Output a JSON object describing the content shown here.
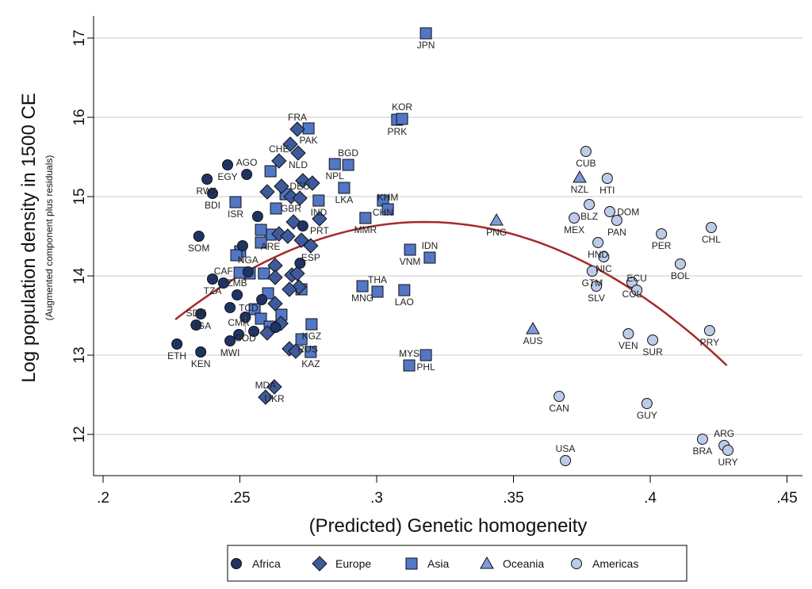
{
  "chart_data": {
    "type": "scatter",
    "xlabel": "(Predicted) Genetic homogeneity",
    "ylabel": "Log population density in 1500 CE",
    "ylabel_sub": "(Augmented component plus residuals)",
    "xlim": [
      0.2,
      0.45
    ],
    "ylim": [
      11.5,
      17.2
    ],
    "x_ticks": [
      ".2",
      ".25",
      ".3",
      ".35",
      ".4",
      ".45"
    ],
    "x_tick_values": [
      0.2,
      0.25,
      0.3,
      0.35,
      0.4,
      0.45
    ],
    "y_ticks": [
      "12",
      "13",
      "14",
      "15",
      "16",
      "17"
    ],
    "y_tick_values": [
      12,
      13,
      14,
      15,
      16,
      17
    ],
    "grid": "horizontal",
    "legend_position": "bottom",
    "legend": [
      {
        "name": "Africa",
        "marker": "circle",
        "color": "#1f3464"
      },
      {
        "name": "Europe",
        "marker": "diamond",
        "color": "#3d5a9c"
      },
      {
        "name": "Asia",
        "marker": "square",
        "color": "#5277c6"
      },
      {
        "name": "Oceania",
        "marker": "triangle",
        "color": "#7e9bd9"
      },
      {
        "name": "Americas",
        "marker": "circle",
        "color": "#bccbe9"
      }
    ],
    "fit": {
      "type": "quadratic",
      "color": "#a52a2a",
      "x_range": [
        0.2264,
        0.428
      ],
      "vertex_x": 0.3175,
      "vertex_y": 14.68,
      "curvature": -148.2
    },
    "points": [
      [
        "JPN",
        "Asia",
        0.318,
        17.06
      ],
      [
        "PRK",
        "Asia",
        0.3075,
        15.97
      ],
      [
        "KOR",
        "Asia",
        0.3093,
        15.98
      ],
      [
        "NPL",
        "Asia",
        0.2847,
        15.41
      ],
      [
        "BGD",
        "Asia",
        0.2896,
        15.4
      ],
      [
        "LKA",
        "Asia",
        0.2881,
        15.11
      ],
      [
        "CHN",
        "Asia",
        0.3023,
        14.95
      ],
      [
        "KHM",
        "Asia",
        0.3041,
        14.84
      ],
      [
        "MMR",
        "Asia",
        0.2959,
        14.73
      ],
      [
        "VNM",
        "Asia",
        0.3122,
        14.33
      ],
      [
        "IDN",
        "Asia",
        0.3194,
        14.23
      ],
      [
        "MNG",
        "Asia",
        0.2948,
        13.87
      ],
      [
        "THA",
        "Asia",
        0.3003,
        13.8
      ],
      [
        "LAO",
        "Asia",
        0.3101,
        13.82
      ],
      [
        "PHL",
        "Asia",
        0.318,
        13.0
      ],
      [
        "MYS",
        "Asia",
        0.3119,
        12.87
      ],
      [
        "PAK",
        "Asia",
        0.2751,
        15.86
      ],
      [
        "ISR",
        "Asia",
        0.2484,
        14.93
      ],
      [
        "IND",
        "Asia",
        0.2788,
        14.95
      ],
      [
        "ARE",
        "Asia",
        0.2612,
        14.52
      ],
      [
        "",
        "Asia",
        0.2667,
        15.03
      ],
      [
        "",
        "Asia",
        0.2632,
        14.85
      ],
      [
        "",
        "Asia",
        0.2577,
        14.58
      ],
      [
        "",
        "Asia",
        0.2577,
        14.42
      ],
      [
        "",
        "Asia",
        0.2501,
        14.31
      ],
      [
        "",
        "Asia",
        0.2487,
        14.26
      ],
      [
        "",
        "Asia",
        0.2612,
        15.32
      ],
      [
        "",
        "Asia",
        0.2588,
        14.03
      ],
      [
        "",
        "Asia",
        0.2536,
        14.03
      ],
      [
        "",
        "Asia",
        0.2499,
        14.04
      ],
      [
        "",
        "Asia",
        0.2603,
        13.78
      ],
      [
        "",
        "Asia",
        0.2554,
        13.58
      ],
      [
        "",
        "Asia",
        0.2577,
        13.46
      ],
      [
        "",
        "Asia",
        0.2609,
        13.36
      ],
      [
        "",
        "Asia",
        0.2652,
        13.51
      ],
      [
        "",
        "Asia",
        0.2725,
        13.83
      ],
      [
        "KGZ",
        "Asia",
        0.2762,
        13.39
      ],
      [
        "",
        "Asia",
        0.2725,
        13.2
      ],
      [
        "KAZ",
        "Asia",
        0.2759,
        13.04
      ],
      [
        "PNG",
        "Oceania",
        0.3438,
        14.7
      ],
      [
        "AUS",
        "Oceania",
        0.3571,
        13.33
      ],
      [
        "NZL",
        "Oceania",
        0.3742,
        15.24
      ],
      [
        "FRA",
        "Europe",
        0.271,
        15.85
      ],
      [
        "",
        "Europe",
        0.2684,
        15.66
      ],
      [
        "NLD",
        "Europe",
        0.2713,
        15.55
      ],
      [
        "CHE",
        "Europe",
        0.2643,
        15.45
      ],
      [
        "",
        "Europe",
        0.26,
        15.06
      ],
      [
        "",
        "Europe",
        0.2652,
        15.13
      ],
      [
        "GBR",
        "Europe",
        0.2687,
        15.0
      ],
      [
        "DEU",
        "Europe",
        0.2719,
        14.98
      ],
      [
        "",
        "Europe",
        0.273,
        15.2
      ],
      [
        "",
        "Europe",
        0.2765,
        15.17
      ],
      [
        "PRT",
        "Europe",
        0.2791,
        14.72
      ],
      [
        "",
        "Europe",
        0.2696,
        14.68
      ],
      [
        "",
        "Europe",
        0.2643,
        14.53
      ],
      [
        "",
        "Europe",
        0.2675,
        14.5
      ],
      [
        "",
        "Europe",
        0.2725,
        14.45
      ],
      [
        "ESP",
        "Europe",
        0.2759,
        14.38
      ],
      [
        "",
        "Europe",
        0.2629,
        14.13
      ],
      [
        "",
        "Europe",
        0.269,
        14.01
      ],
      [
        "",
        "Europe",
        0.2716,
        13.86
      ],
      [
        "",
        "Europe",
        0.2629,
        13.98
      ],
      [
        "",
        "Europe",
        0.271,
        14.03
      ],
      [
        "",
        "Europe",
        0.2681,
        13.83
      ],
      [
        "",
        "Europe",
        0.2629,
        13.65
      ],
      [
        "RUS",
        "Europe",
        0.2681,
        13.08
      ],
      [
        "",
        "Europe",
        0.2704,
        13.05
      ],
      [
        "UKR",
        "Europe",
        0.2626,
        12.6
      ],
      [
        "MDA",
        "Europe",
        0.2594,
        12.47
      ],
      [
        "",
        "Europe",
        0.265,
        13.4
      ],
      [
        "",
        "Europe",
        0.26,
        13.28
      ],
      [
        "EGY",
        "Africa",
        0.2455,
        15.4
      ],
      [
        "RWA",
        "Africa",
        0.238,
        15.22
      ],
      [
        "BDI",
        "Africa",
        0.24,
        15.04
      ],
      [
        "AGO",
        "Africa",
        0.2525,
        15.28
      ],
      [
        "SOM",
        "Africa",
        0.235,
        14.5
      ],
      [
        "",
        "Africa",
        0.2565,
        14.75
      ],
      [
        "TZA",
        "Africa",
        0.24,
        13.96
      ],
      [
        "CAF",
        "Africa",
        0.244,
        13.91
      ],
      [
        "UGA",
        "Africa",
        0.2357,
        13.52
      ],
      [
        "SDN",
        "Africa",
        0.234,
        13.38
      ],
      [
        "ETH",
        "Africa",
        0.227,
        13.14
      ],
      [
        "KEN",
        "Africa",
        0.2357,
        13.04
      ],
      [
        "MWI",
        "Africa",
        0.2464,
        13.18
      ],
      [
        "CMR",
        "Africa",
        0.2496,
        13.26
      ],
      [
        "TCD",
        "Africa",
        0.2464,
        13.6
      ],
      [
        "ZMB",
        "Africa",
        0.249,
        13.76
      ],
      [
        "COD",
        "Africa",
        0.252,
        13.48
      ],
      [
        "NGA",
        "Africa",
        0.253,
        14.05
      ],
      [
        "",
        "Africa",
        0.2551,
        13.3
      ],
      [
        "",
        "Africa",
        0.273,
        14.63
      ],
      [
        "",
        "Africa",
        0.272,
        14.16
      ],
      [
        "",
        "Africa",
        0.251,
        14.38
      ],
      [
        "",
        "Africa",
        0.263,
        13.35
      ],
      [
        "",
        "Africa",
        0.258,
        13.7
      ],
      [
        "CUB",
        "Americas",
        0.3765,
        15.57
      ],
      [
        "HTI",
        "Americas",
        0.3843,
        15.23
      ],
      [
        "BLZ",
        "Americas",
        0.3777,
        14.9
      ],
      [
        "MEX",
        "Americas",
        0.3722,
        14.73
      ],
      [
        "DOM",
        "Americas",
        0.3852,
        14.81
      ],
      [
        "PAN",
        "Americas",
        0.3878,
        14.7
      ],
      [
        "HND",
        "Americas",
        0.3809,
        14.42
      ],
      [
        "NIC",
        "Americas",
        0.383,
        14.24
      ],
      [
        "GTM",
        "Americas",
        0.3788,
        14.06
      ],
      [
        "SLV",
        "Americas",
        0.3803,
        13.87
      ],
      [
        "COL",
        "Americas",
        0.3933,
        13.92
      ],
      [
        "ECU",
        "Americas",
        0.3951,
        13.82
      ],
      [
        "PER",
        "Americas",
        0.4041,
        14.53
      ],
      [
        "CHL",
        "Americas",
        0.4223,
        14.61
      ],
      [
        "BOL",
        "Americas",
        0.411,
        14.15
      ],
      [
        "VEN",
        "Americas",
        0.392,
        13.27
      ],
      [
        "SUR",
        "Americas",
        0.4009,
        13.19
      ],
      [
        "PRY",
        "Americas",
        0.4217,
        13.31
      ],
      [
        "CAN",
        "Americas",
        0.3667,
        12.48
      ],
      [
        "GUY",
        "Americas",
        0.3988,
        12.39
      ],
      [
        "USA",
        "Americas",
        0.369,
        11.67
      ],
      [
        "BRA",
        "Americas",
        0.4191,
        11.94
      ],
      [
        "ARG",
        "Americas",
        0.427,
        11.86
      ],
      [
        "URY",
        "Americas",
        0.4284,
        11.8
      ]
    ]
  }
}
